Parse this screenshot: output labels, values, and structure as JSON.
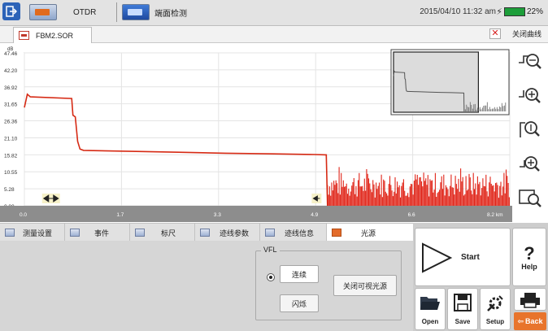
{
  "topbar": {
    "tabs": [
      {
        "label": "OTDR",
        "icon": "otdr-tab-icon"
      },
      {
        "label": "端面检测",
        "icon": "fiber-inspection-tab-icon"
      }
    ],
    "datetime": "2015/04/10 11:32 am",
    "battery": "22%",
    "exit_icon": "exit-icon"
  },
  "filebar": {
    "file_name": "FBM2.SOR",
    "close_trace_label": "关闭曲线"
  },
  "chart_data": {
    "type": "line",
    "ylabel": "dB",
    "ylim": [
      0,
      47.46
    ],
    "yticks": [
      "47.46",
      "42.20",
      "36.92",
      "31.65",
      "26.36",
      "21.10",
      "15.82",
      "10.55",
      "5.28",
      "0.00"
    ],
    "xlim": [
      0,
      8.2
    ],
    "xticks": [
      "0.0",
      "1.7",
      "3.3",
      "4.9",
      "6.6",
      "8.2 km"
    ],
    "series_color": "#d62a14",
    "noise_color": "#e02418",
    "trace": {
      "x": [
        0,
        0.05,
        0.1,
        0.8,
        0.82,
        0.86,
        0.9,
        0.94,
        1.0,
        1.8,
        2.6,
        3.4,
        4.2,
        4.9,
        5.1,
        5.12
      ],
      "y": [
        30.5,
        34.6,
        33.8,
        33.3,
        28.1,
        27.6,
        20.0,
        17.6,
        17.2,
        16.9,
        16.6,
        16.3,
        16.1,
        15.9,
        15.8,
        0.0
      ]
    },
    "noise_region_km": [
      5.12,
      8.2
    ],
    "noise_level_db": [
      2.5,
      10.5
    ],
    "markers": [
      {
        "x": 0.45,
        "shape": "double-arrow"
      },
      {
        "x": 4.95,
        "shape": "arrow-left"
      }
    ],
    "minimap": true,
    "grid": true
  },
  "zoom_tools": [
    {
      "name": "zoom-horizontal-out-icon"
    },
    {
      "name": "zoom-horizontal-in-icon"
    },
    {
      "name": "zoom-vertical-out-icon"
    },
    {
      "name": "zoom-vertical-in-icon"
    },
    {
      "name": "zoom-fit-icon"
    }
  ],
  "bottom_tabs": [
    {
      "label": "测量设置",
      "active": false
    },
    {
      "label": "事件",
      "active": false
    },
    {
      "label": "标尺",
      "active": false
    },
    {
      "label": "迹线参数",
      "active": false
    },
    {
      "label": "迹线信息",
      "active": false
    },
    {
      "label": "光源",
      "active": true
    }
  ],
  "vfl": {
    "title": "VFL",
    "continuous_label": "连续",
    "flash_label": "闪烁",
    "off_label": "关闭可视光源"
  },
  "controls": {
    "start_label": "Start",
    "help_label": "Help",
    "open_label": "Open",
    "save_label": "Save",
    "setup_label": "Setup",
    "back_label": "Back"
  }
}
